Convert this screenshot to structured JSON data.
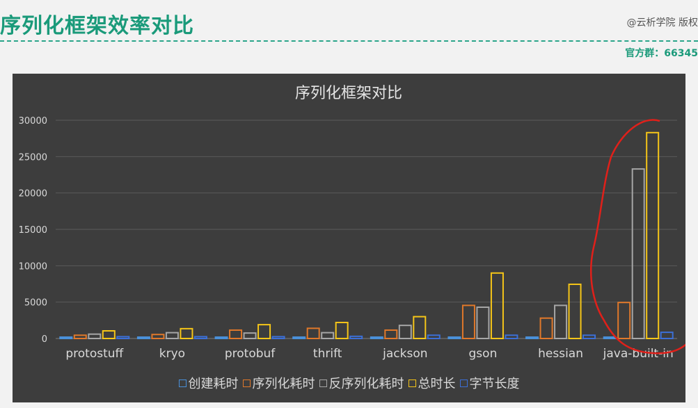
{
  "slide": {
    "title": "序列化框架效率对比",
    "brand": "@云析学院 版权",
    "group": "官方群：66345"
  },
  "colors": {
    "accent": "#1a9a7a",
    "panel_bg": "#3d3d3d",
    "annotation": "#e0201a"
  },
  "chart_data": {
    "type": "bar",
    "title": "序列化框架对比",
    "categories": [
      "protostuff",
      "kryo",
      "protobuf",
      "thrift",
      "jackson",
      "gson",
      "hessian",
      "java-built-in"
    ],
    "ylim": [
      0,
      30000
    ],
    "yticks": [
      0,
      5000,
      10000,
      15000,
      20000,
      25000,
      30000
    ],
    "grid": true,
    "legend_position": "bottom",
    "series": [
      {
        "name": "创建耗时",
        "color": "#4a90d9",
        "values": [
          120,
          130,
          130,
          100,
          150,
          120,
          130,
          150
        ]
      },
      {
        "name": "序列化耗时",
        "color": "#e0782a",
        "values": [
          450,
          550,
          1150,
          1400,
          1150,
          4550,
          2800,
          4950
        ]
      },
      {
        "name": "反序列化耗时",
        "color": "#a6a6a6",
        "values": [
          600,
          800,
          750,
          800,
          1800,
          4300,
          4550,
          23300
        ]
      },
      {
        "name": "总时长",
        "color": "#f5c518",
        "values": [
          1050,
          1350,
          1900,
          2200,
          3000,
          9000,
          7450,
          28300
        ]
      },
      {
        "name": "字节长度",
        "color": "#3c6fd6",
        "values": [
          250,
          250,
          250,
          300,
          450,
          450,
          450,
          850
        ]
      }
    ]
  }
}
